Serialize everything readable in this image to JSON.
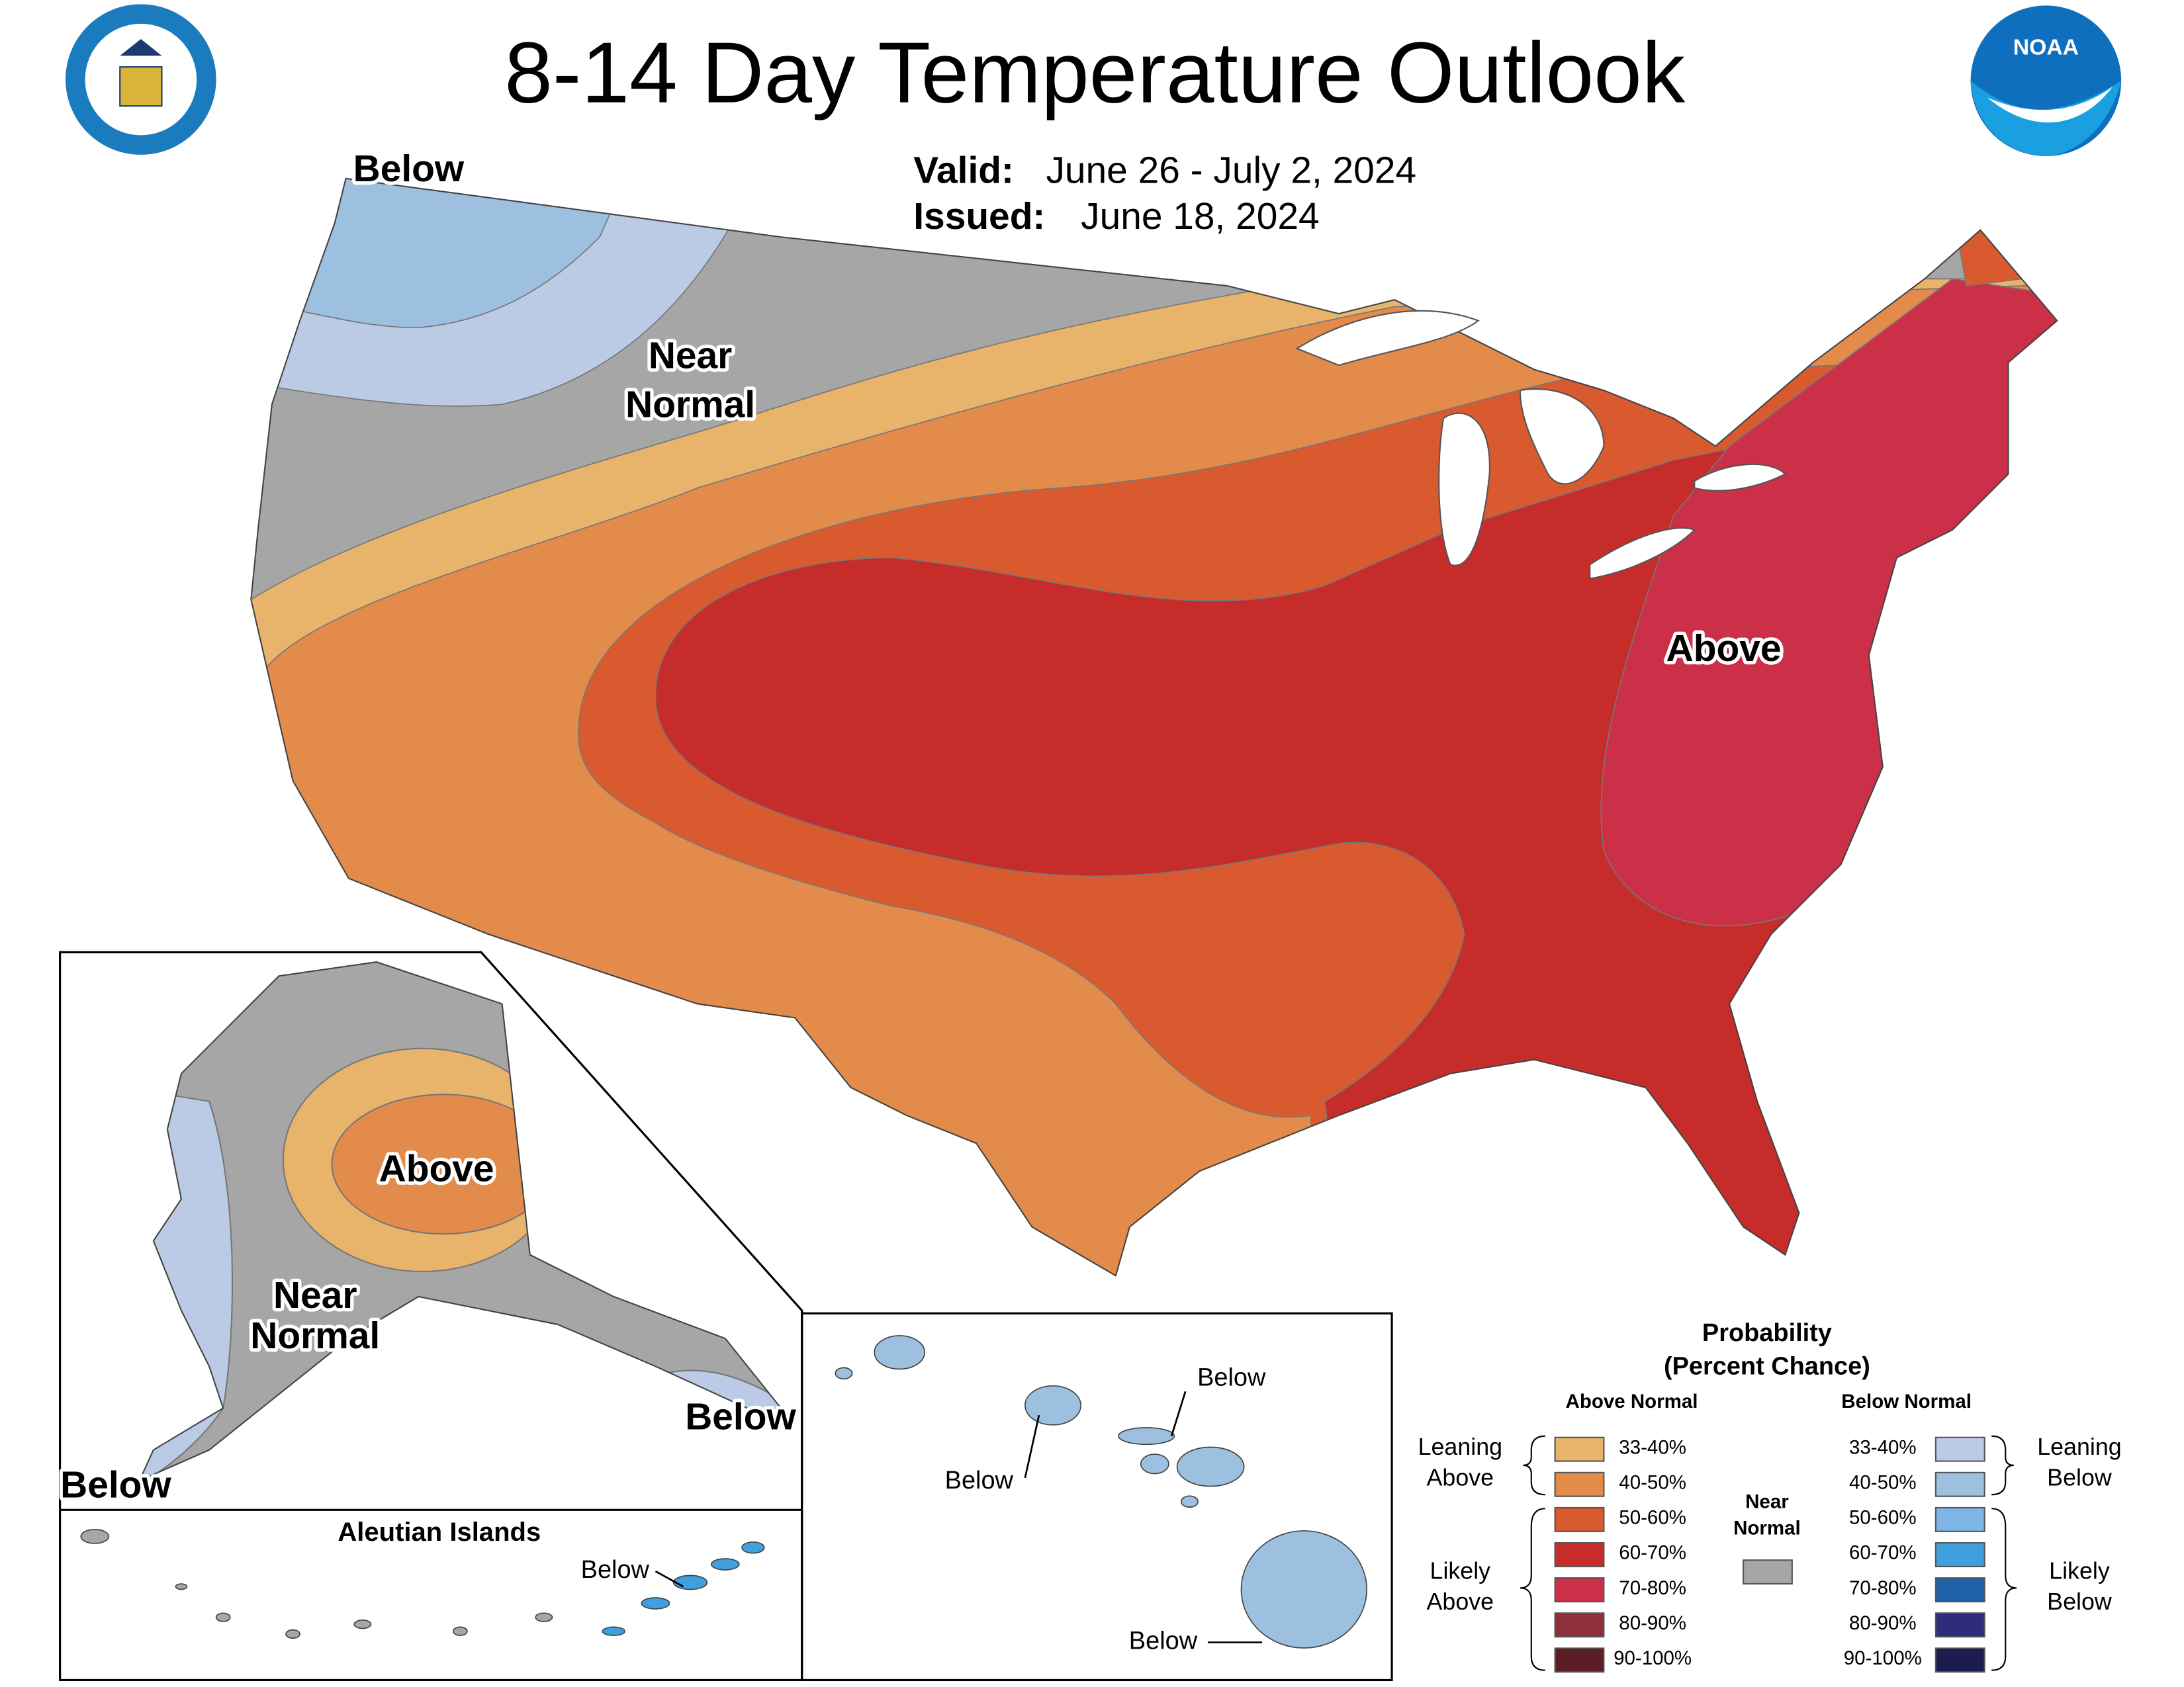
{
  "title": "8-14 Day Temperature Outlook",
  "valid": {
    "label": "Valid:",
    "value": "June 26 - July 2, 2024"
  },
  "issued": {
    "label": "Issued:",
    "value": "June 18, 2024"
  },
  "logo_noaa": "NOAA",
  "map_labels": [
    {
      "lines": [
        "Below"
      ]
    },
    {
      "lines": [
        "Near",
        "Normal"
      ]
    },
    {
      "lines": [
        "Above"
      ]
    },
    {
      "lines": [
        "Above"
      ]
    },
    {
      "lines": [
        "Near",
        "Normal"
      ]
    },
    {
      "lines": [
        "Below"
      ]
    },
    {
      "lines": [
        "Below"
      ]
    },
    {
      "lines": [
        "Below"
      ]
    },
    {
      "lines": [
        "Below"
      ]
    },
    {
      "lines": [
        "Below"
      ]
    },
    {
      "lines": [
        "Below"
      ]
    }
  ],
  "aleutian_title": "Aleutian Islands",
  "legend": {
    "title": [
      "Probability",
      "(Percent Chance)"
    ],
    "above_header": "Above Normal",
    "below_header": "Below Normal",
    "above": [
      {
        "label": "33-40%",
        "color": "#e8b46c"
      },
      {
        "label": "40-50%",
        "color": "#e38b4a"
      },
      {
        "label": "50-60%",
        "color": "#da5a30"
      },
      {
        "label": "60-70%",
        "color": "#c62d2a"
      },
      {
        "label": "70-80%",
        "color": "#cc2f48"
      },
      {
        "label": "80-90%",
        "color": "#8e2f3b"
      },
      {
        "label": "90-100%",
        "color": "#5b1e26"
      }
    ],
    "below": [
      {
        "label": "33-40%",
        "color": "#bccbe5"
      },
      {
        "label": "40-50%",
        "color": "#9dbfe0"
      },
      {
        "label": "50-60%",
        "color": "#7fb5e6"
      },
      {
        "label": "60-70%",
        "color": "#3fa0dd"
      },
      {
        "label": "70-80%",
        "color": "#1e62a8"
      },
      {
        "label": "80-90%",
        "color": "#2e2d7d"
      },
      {
        "label": "90-100%",
        "color": "#1d1c4f"
      }
    ],
    "near": {
      "lines": [
        "Near",
        "Normal"
      ],
      "color": "#a6a6a6"
    },
    "leaning_above": [
      "Leaning",
      "Above"
    ],
    "likely_above": [
      "Likely",
      "Above"
    ],
    "leaning_below": [
      "Leaning",
      "Below"
    ],
    "likely_below": [
      "Likely",
      "Below"
    ]
  }
}
